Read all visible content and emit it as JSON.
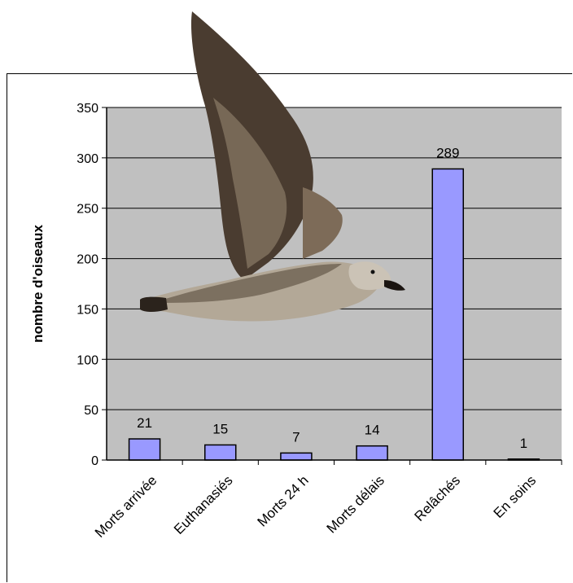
{
  "chart_data": {
    "type": "bar",
    "title": "",
    "xlabel": "",
    "ylabel": "nombre d'oiseaux",
    "ylim": [
      0,
      350
    ],
    "yticks": [
      0,
      50,
      100,
      150,
      200,
      250,
      300,
      350
    ],
    "grid": true,
    "legend": "none",
    "categories": [
      "Morts arrivée",
      "Euthanasiés",
      "Morts 24 h",
      "Morts délais",
      "Relâchés",
      "En soins"
    ],
    "values": [
      21,
      15,
      7,
      14,
      289,
      1
    ],
    "colors": {
      "bar": "#9999ff",
      "plot_bg": "#c0c0c0",
      "bird_back": "#6e6152",
      "bird_wing": "#4a3c30",
      "bird_belly": "#b3a897",
      "bird_head": "#cbc3b6"
    }
  },
  "overlay": {
    "image": "gull-in-flight"
  }
}
